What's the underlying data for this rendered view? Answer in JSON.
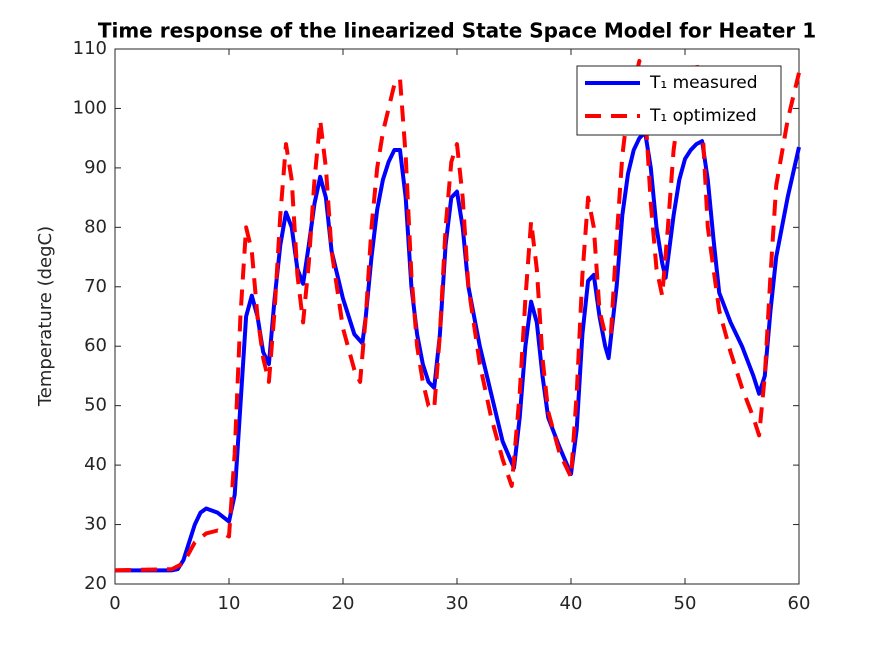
{
  "chart_data": {
    "type": "line",
    "title": "Time response of the linearized State Space Model for Heater 1",
    "y_label": "Temperature (degC)",
    "xlim": [
      0,
      60
    ],
    "xticks": [
      0,
      10,
      20,
      30,
      40,
      50,
      60
    ],
    "ylim": [
      20,
      110
    ],
    "yticks": [
      20,
      30,
      40,
      50,
      60,
      70,
      80,
      90,
      100,
      110
    ],
    "legend": "upper-right",
    "series": [
      {
        "name": "T₁ measured",
        "color": "#0000ff",
        "style": "solid",
        "x": [
          0,
          5,
          5.5,
          6,
          7,
          7.5,
          8,
          9,
          10,
          10.5,
          11,
          11.5,
          12,
          12.5,
          13,
          13.5,
          14,
          14.5,
          15,
          15.5,
          16,
          16.5,
          17,
          17.5,
          18,
          18.5,
          19,
          20,
          21,
          21.7,
          22,
          22.5,
          23,
          23.5,
          24,
          24.5,
          25,
          25.5,
          26,
          26.5,
          27,
          27.5,
          28,
          28.5,
          29,
          29.5,
          30,
          30.5,
          31,
          32,
          33,
          34,
          35,
          35.5,
          36,
          36.5,
          37,
          37.5,
          38,
          39,
          40,
          40.5,
          41,
          41.5,
          42,
          42.5,
          43,
          43.3,
          44,
          44.5,
          45,
          45.5,
          46,
          46.5,
          47,
          47.5,
          48,
          48.3,
          49,
          49.5,
          50,
          50.5,
          51,
          51.5,
          52,
          52.5,
          53,
          54,
          55,
          56,
          56.5,
          57,
          57.5,
          58,
          59,
          60
        ],
        "values": [
          22.3,
          22.3,
          22.5,
          24,
          30,
          32,
          32.7,
          32,
          30.5,
          35,
          50,
          65,
          68.5,
          65,
          59,
          57,
          68,
          77,
          82.5,
          80,
          73,
          70.5,
          77,
          84,
          88.5,
          85,
          76,
          68,
          62,
          60.5,
          65,
          75,
          83,
          88,
          91,
          93,
          93,
          85,
          70,
          62,
          57,
          54,
          53,
          62,
          77,
          85,
          86,
          80,
          70,
          60,
          52,
          44,
          39.5,
          48,
          60,
          67.5,
          64,
          55,
          48,
          43,
          38.5,
          46,
          62,
          71,
          72,
          65,
          60,
          58,
          70,
          82,
          89,
          93,
          95,
          96,
          90,
          80,
          74,
          71.5,
          82,
          88,
          91.5,
          93,
          94,
          94.5,
          88,
          78,
          69,
          64,
          60,
          55,
          52,
          55,
          66,
          75,
          85,
          93.5
        ]
      },
      {
        "name": "T₁ optimized",
        "color": "#ff0000",
        "style": "dashed",
        "x": [
          0,
          5,
          6,
          7,
          8,
          9,
          9.5,
          10,
          10.5,
          11,
          11.5,
          12,
          12.5,
          13,
          13.5,
          14,
          14.5,
          15,
          15.5,
          16,
          16.5,
          17,
          17.5,
          18,
          18.5,
          19,
          20,
          21,
          21.5,
          22,
          22.5,
          23,
          23.5,
          24,
          24.5,
          25,
          25.5,
          26,
          26.5,
          27,
          27.5,
          28,
          28.5,
          29,
          29.5,
          30,
          30.5,
          31,
          32,
          33,
          34,
          34.8,
          35.5,
          36,
          36.5,
          37,
          37.5,
          38,
          39,
          40,
          40.5,
          41,
          41.5,
          42,
          42.5,
          43,
          43.5,
          44,
          44.5,
          45,
          45.5,
          46,
          46.5,
          47,
          47.5,
          48,
          48.5,
          49,
          49.5,
          50,
          50.5,
          51,
          51.5,
          52,
          53,
          54,
          55,
          56,
          56.5,
          57,
          57.5,
          58,
          59,
          60
        ],
        "values": [
          22.3,
          22.5,
          23.5,
          27,
          28.5,
          29,
          28.5,
          28,
          42,
          65,
          80,
          76,
          65,
          58,
          54,
          66,
          82,
          94,
          88,
          72,
          64,
          74,
          88,
          98,
          90,
          76,
          63,
          56,
          54,
          65,
          80,
          90,
          96,
          100,
          104,
          105,
          92,
          72,
          60,
          54,
          50,
          49.5,
          62,
          80,
          91,
          94,
          85,
          70,
          57,
          48,
          41,
          36.5,
          52,
          68,
          81,
          73,
          58,
          49,
          42,
          38,
          52,
          72,
          85,
          80,
          66,
          62,
          62,
          78,
          92,
          100,
          104,
          108,
          100,
          84,
          73,
          68.5,
          80,
          93,
          100,
          104,
          106,
          108,
          98,
          80,
          66,
          59,
          53,
          48,
          45,
          55,
          72,
          87,
          98,
          106
        ]
      }
    ]
  }
}
